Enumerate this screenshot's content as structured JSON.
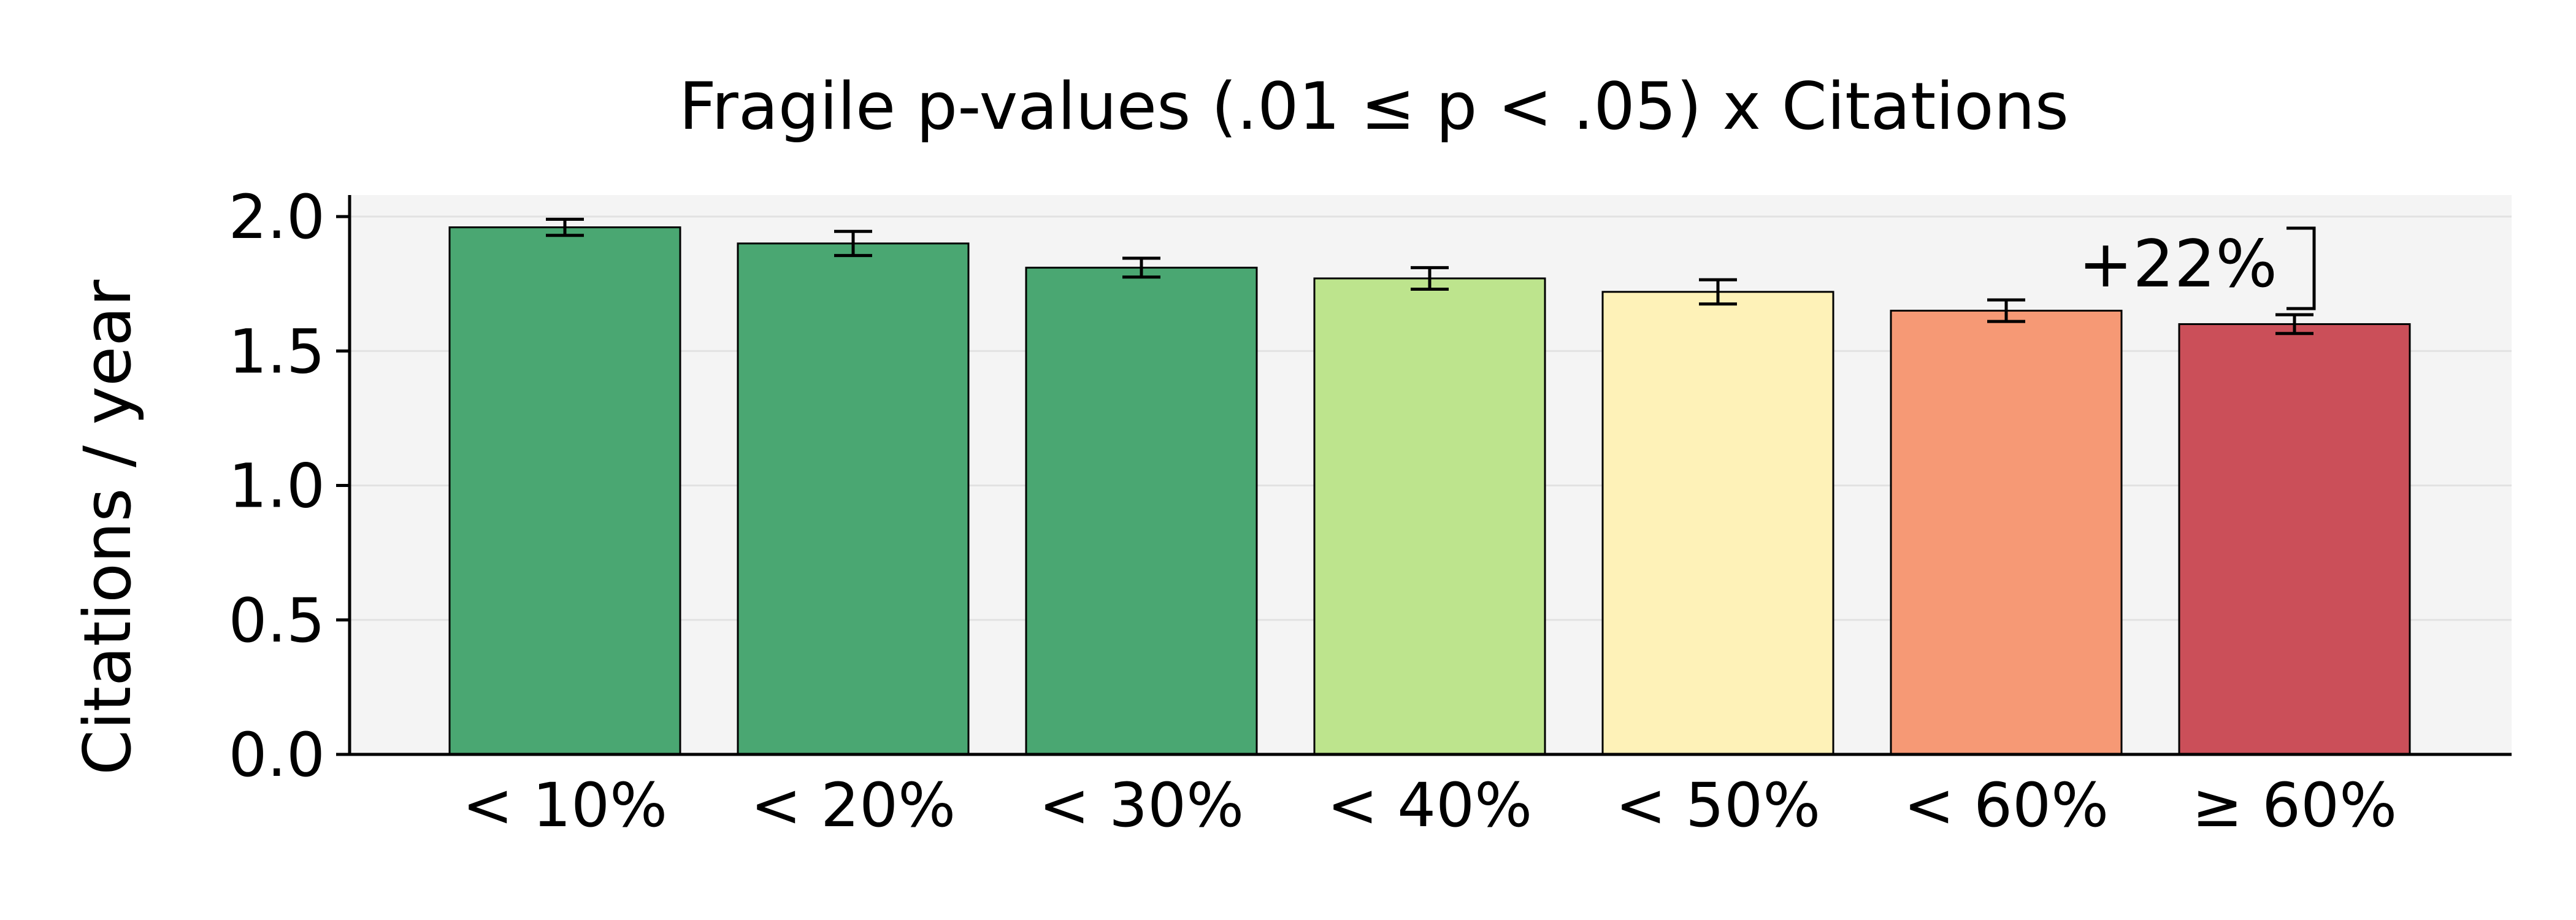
{
  "chart_data": {
    "type": "bar",
    "title": "Fragile p-values (.01 ≤ p < .05) x Citations",
    "xlabel": "",
    "ylabel": "Citations / year",
    "categories": [
      "< 10%",
      "< 20%",
      "< 30%",
      "< 40%",
      "< 50%",
      "< 60%",
      "≥ 60%"
    ],
    "values": [
      1.96,
      1.9,
      1.81,
      1.77,
      1.72,
      1.65,
      1.6
    ],
    "error_bars": [
      0.03,
      0.045,
      0.035,
      0.04,
      0.045,
      0.04,
      0.035
    ],
    "bar_colors": [
      "#4aa772",
      "#4aa772",
      "#4aa772",
      "#bde48d",
      "#fef2b8",
      "#f69975",
      "#cb4f59"
    ],
    "ylim": [
      0,
      2.08
    ],
    "yticks": [
      "0.0",
      "0.5",
      "1.0",
      "1.5",
      "2.0"
    ],
    "ytick_values": [
      0,
      0.5,
      1.0,
      1.5,
      2.0
    ],
    "grid": true,
    "plot_background": "#f4f4f4",
    "annotation": {
      "text": "+22%",
      "from_category": "< 60%",
      "to_category": "≥ 60%"
    }
  }
}
